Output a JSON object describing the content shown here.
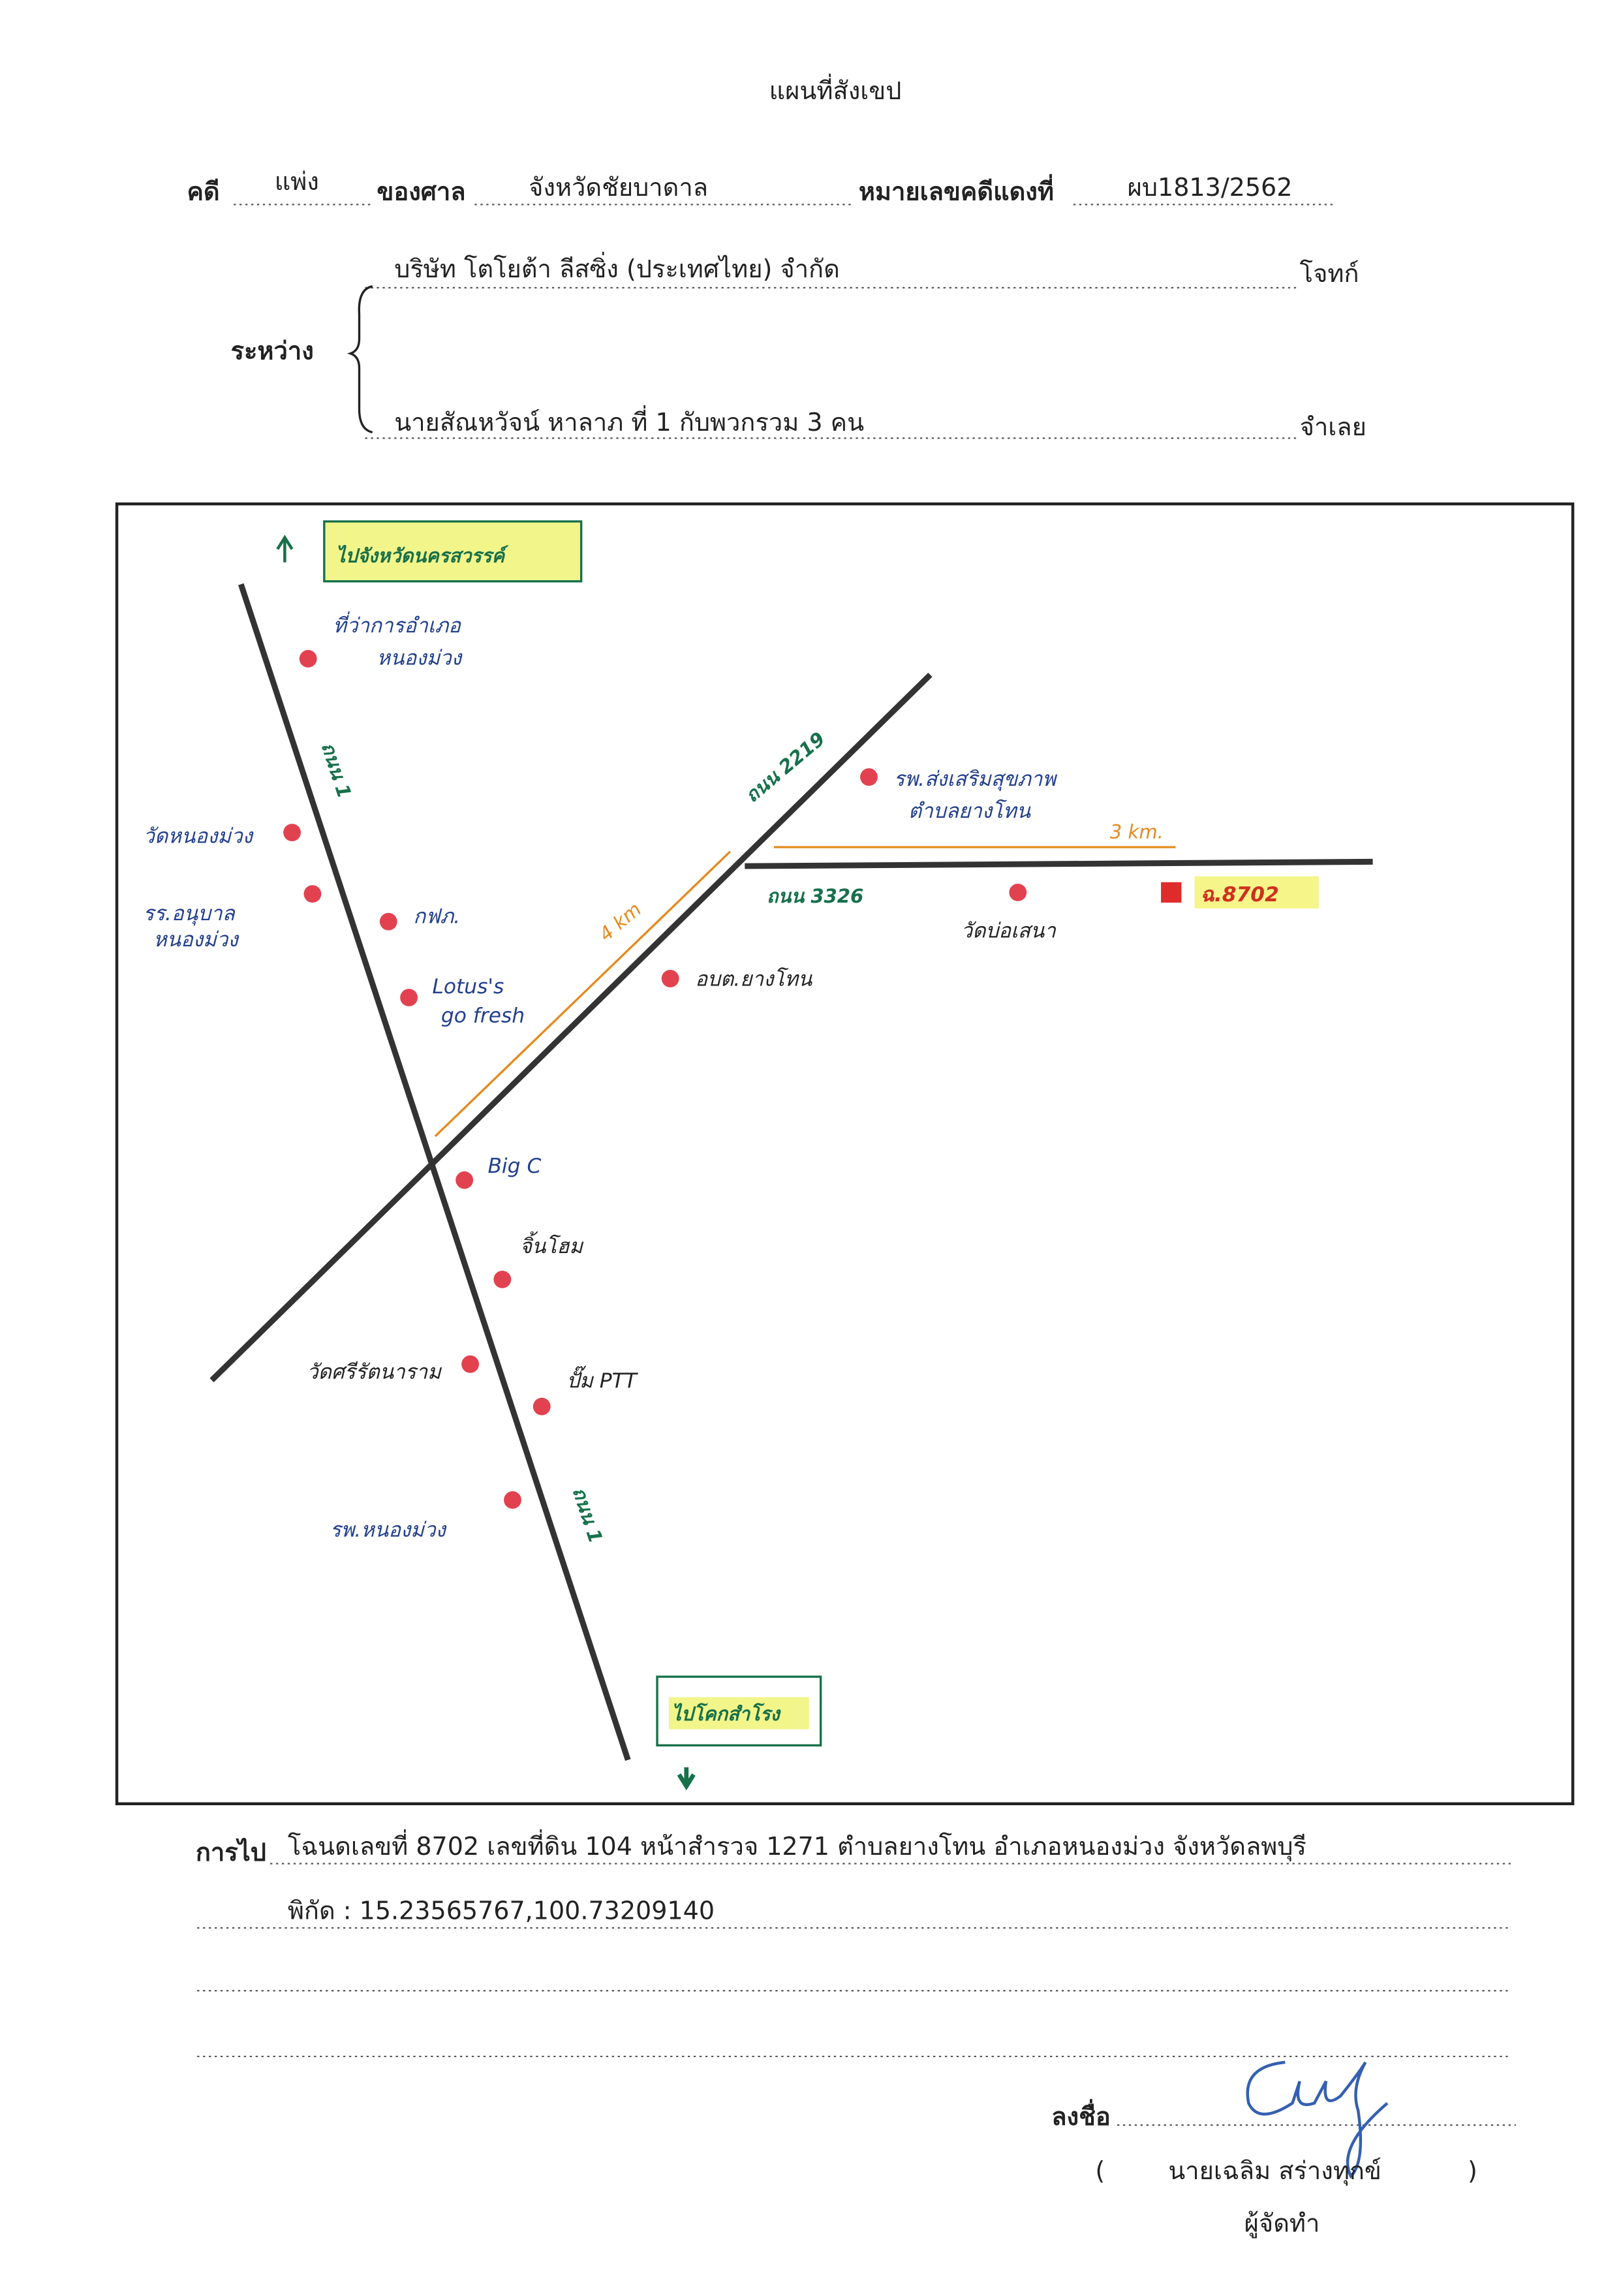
{
  "header": {
    "title": "แผนที่สังเขป",
    "case_label": "คดี",
    "case_type": "แพ่ง",
    "court_label": "ของศาล",
    "court": "จังหวัดชัยบาดาล",
    "red_case_label": "หมายเลขคดีแดงที่",
    "red_case_no": "ผบ1813/2562",
    "between_label": "ระหว่าง",
    "plaintiff": "บริษัท โตโยต้า ลีสซิ่ง (ประเทศไทย) จำกัด",
    "plaintiff_role": "โจทก์",
    "defendant": "นายสัณหวัจน์ หาลาภ ที่ 1 กับพวกรวม 3 คน",
    "defendant_role": "จำเลย"
  },
  "map": {
    "labels": [
      "ไปจังหวัดนครสวรรค์",
      "ที่ว่าการอำเภอ",
      "หนองม่วง",
      "ถนน 1",
      "วัดหนองม่วง",
      "รร.อนุบาล",
      "หนองม่วง",
      "กฟภ.",
      "Lotus's",
      "go fresh",
      "ถนน 2219",
      "รพ.ส่งเสริมสุขภาพ",
      "ตำบลยางโทน",
      "3 km.",
      "4 km",
      "ถนน 3326",
      "วัดบ่อเสนา",
      "ฉ.8702",
      "อบต.ยางโทน",
      "Big C",
      "จิ้นโฮม",
      "วัดศรีรัตนาราม",
      "ปั๊ม PTT",
      "รพ.หนองม่วง",
      "ถนน 1",
      "ไปโคกสำโรง"
    ]
  },
  "footer": {
    "route_label": "การไป",
    "route": "โฉนดเลขที่ 8702 เลขที่ดิน 104 หน้าสำรวจ 1271 ตำบลยางโทน อำเภอหนองม่วง จังหวัดลพบุรี",
    "coords": "พิกัด : 15.23565767,100.73209140",
    "sign_label": "ลงชื่อ",
    "open_paren": "(",
    "signer": "นายเฉลิม  สร่างทุกข์",
    "close_paren": ")",
    "signer_role": "ผู้จัดทำ"
  }
}
